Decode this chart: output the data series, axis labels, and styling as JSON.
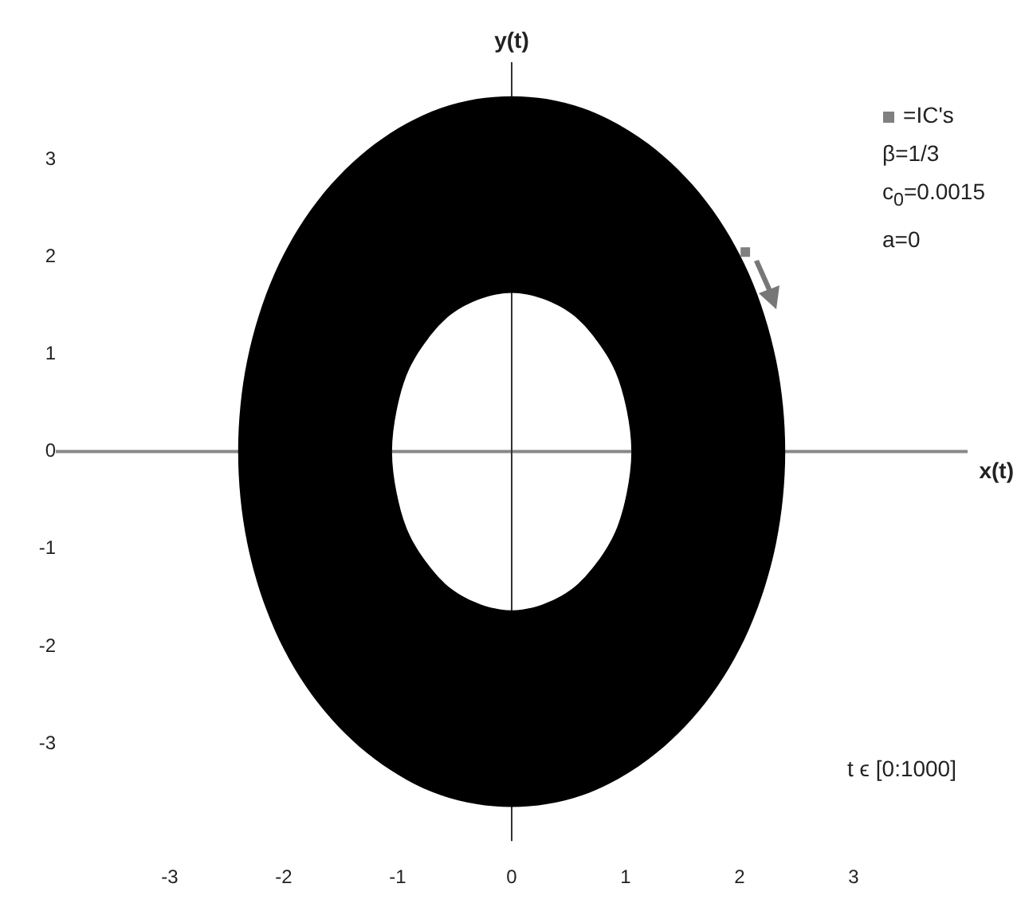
{
  "chart_data": {
    "type": "area",
    "xlabel": "x(t)",
    "ylabel": "y(t)",
    "xlim": [
      -4,
      4
    ],
    "ylim": [
      -4,
      4
    ],
    "xticks": [
      -3,
      -2,
      -1,
      0,
      1,
      2,
      3
    ],
    "yticks": [
      -3,
      -2,
      -1,
      0,
      1,
      2,
      3
    ],
    "grid": false,
    "legend": "top right",
    "series": [
      {
        "color": "#000000",
        "x": [
          2.4,
          2.32,
          2.08,
          1.7,
          1.2,
          0.62,
          0,
          -0.62,
          -1.2,
          -1.7,
          -2.08,
          -2.32,
          -2.4,
          -2.32,
          -2.08,
          -1.7,
          -1.2,
          -0.62,
          0,
          0.62,
          1.2,
          1.7,
          2.08,
          2.32,
          null,
          1.05,
          1.01,
          0.91,
          0.74,
          0.53,
          0.27,
          0,
          -0.27,
          -0.53,
          -0.74,
          -0.91,
          -1.01,
          -1.05,
          -1.01,
          -0.91,
          -0.74,
          -0.53,
          -0.27,
          0,
          0.27,
          0.53,
          0.74,
          0.91,
          1.01
        ],
        "values": [
          0,
          0.94,
          1.83,
          2.58,
          3.16,
          3.53,
          3.65,
          3.53,
          3.16,
          2.58,
          1.83,
          0.94,
          0,
          -0.94,
          -1.83,
          -2.58,
          -3.16,
          -3.53,
          -3.65,
          -3.53,
          -3.16,
          -2.58,
          -1.83,
          -0.94,
          null,
          0,
          0.42,
          0.82,
          1.15,
          1.41,
          1.57,
          1.63,
          1.57,
          1.41,
          1.15,
          0.82,
          0.42,
          0,
          -0.42,
          -0.82,
          -1.15,
          -1.41,
          -1.57,
          -1.63,
          -1.57,
          -1.41,
          -1.15,
          -0.82,
          -0.42
        ]
      },
      {
        "type": "scatter",
        "name": "=IC's",
        "color": "#808080",
        "marker": "square",
        "x": [
          2.05
        ],
        "values": [
          2.05
        ]
      }
    ],
    "annotations": [
      "β=1/3",
      "c$_{0}$=0.0015",
      "a=0",
      "t ϵ [0:1000]"
    ]
  }
}
